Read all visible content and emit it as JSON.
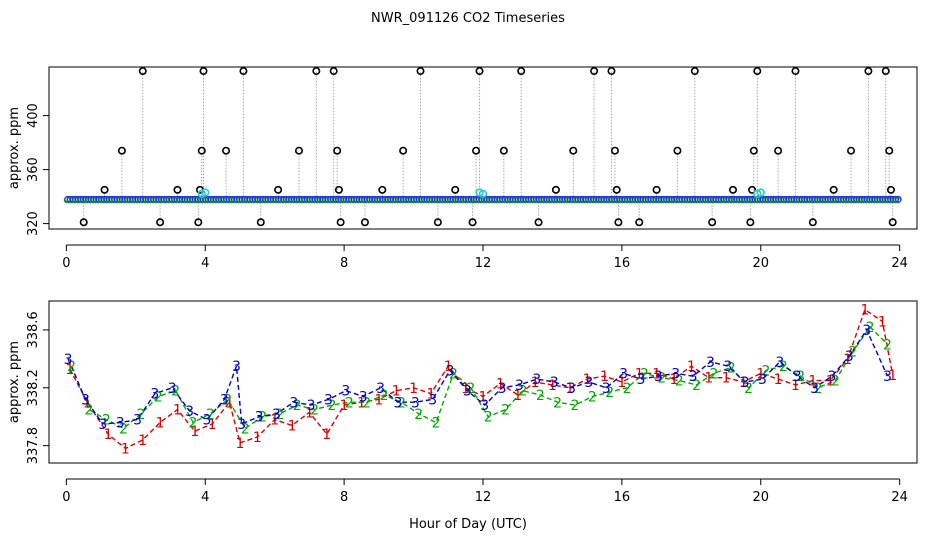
{
  "title": "NWR_091126  CO2 Timeseries",
  "xlabel": "Hour of Day (UTC)",
  "chart_data": [
    {
      "type": "scatter",
      "panel": "top",
      "ylabel": "approx. ppm",
      "xlim": [
        -0.5,
        24.5
      ],
      "ylim": [
        316,
        436
      ],
      "x_ticks": [
        "0",
        "4",
        "8",
        "12",
        "16",
        "20",
        "24"
      ],
      "y_ticks": [
        "320",
        "360",
        "400"
      ],
      "baseline": 338,
      "cyan_points": [
        [
          3.9,
          342
        ],
        [
          4.0,
          343
        ],
        [
          11.9,
          343
        ],
        [
          12.0,
          342
        ],
        [
          19.9,
          342
        ],
        [
          20.0,
          343
        ]
      ],
      "spikes": [
        [
          0.5,
          321
        ],
        [
          1.1,
          345
        ],
        [
          1.6,
          374
        ],
        [
          2.2,
          433
        ],
        [
          2.7,
          321
        ],
        [
          3.2,
          345
        ],
        [
          3.8,
          321
        ],
        [
          3.85,
          345
        ],
        [
          3.9,
          374
        ],
        [
          3.95,
          433
        ],
        [
          4.6,
          374
        ],
        [
          5.1,
          433
        ],
        [
          5.6,
          321
        ],
        [
          6.1,
          345
        ],
        [
          6.7,
          374
        ],
        [
          7.2,
          433
        ],
        [
          7.7,
          433
        ],
        [
          7.8,
          374
        ],
        [
          7.85,
          345
        ],
        [
          7.9,
          321
        ],
        [
          8.6,
          321
        ],
        [
          9.1,
          345
        ],
        [
          9.7,
          374
        ],
        [
          10.2,
          433
        ],
        [
          10.7,
          321
        ],
        [
          11.2,
          345
        ],
        [
          11.7,
          321
        ],
        [
          11.8,
          374
        ],
        [
          11.9,
          433
        ],
        [
          12.6,
          374
        ],
        [
          13.1,
          433
        ],
        [
          13.6,
          321
        ],
        [
          14.1,
          345
        ],
        [
          14.6,
          374
        ],
        [
          15.2,
          433
        ],
        [
          15.7,
          433
        ],
        [
          15.8,
          374
        ],
        [
          15.85,
          345
        ],
        [
          15.9,
          321
        ],
        [
          16.5,
          321
        ],
        [
          17.0,
          345
        ],
        [
          17.6,
          374
        ],
        [
          18.1,
          433
        ],
        [
          18.6,
          321
        ],
        [
          19.2,
          345
        ],
        [
          19.7,
          321
        ],
        [
          19.75,
          345
        ],
        [
          19.8,
          374
        ],
        [
          19.9,
          433
        ],
        [
          20.5,
          374
        ],
        [
          21.0,
          433
        ],
        [
          21.5,
          321
        ],
        [
          22.1,
          345
        ],
        [
          22.6,
          374
        ],
        [
          23.1,
          433
        ],
        [
          23.6,
          433
        ],
        [
          23.7,
          374
        ],
        [
          23.75,
          345
        ],
        [
          23.8,
          321
        ]
      ]
    },
    {
      "type": "line",
      "panel": "bottom",
      "ylabel": "approx. ppm",
      "xlim": [
        -0.5,
        24.5
      ],
      "ylim": [
        337.68,
        338.8
      ],
      "x_ticks": [
        "0",
        "4",
        "8",
        "12",
        "16",
        "20",
        "24"
      ],
      "y_ticks": [
        "337.8",
        "338.2",
        "338.6"
      ],
      "series": [
        {
          "name": "1",
          "color": "#dd0000",
          "x": [
            0.1,
            0.6,
            1.2,
            1.7,
            2.2,
            2.7,
            3.2,
            3.7,
            4.2,
            4.7,
            5.0,
            5.5,
            6.0,
            6.5,
            7.0,
            7.5,
            8.0,
            8.5,
            9.0,
            9.5,
            10.0,
            10.5,
            11.0,
            11.5,
            12.0,
            12.5,
            13.0,
            13.5,
            14.0,
            14.5,
            15.0,
            15.5,
            16.0,
            16.5,
            17.0,
            17.5,
            18.0,
            18.5,
            19.0,
            19.5,
            20.0,
            20.5,
            21.0,
            21.5,
            22.0,
            22.5,
            23.0,
            23.5,
            23.8
          ],
          "y": [
            338.33,
            338.1,
            337.88,
            337.78,
            337.84,
            337.96,
            338.05,
            337.9,
            337.95,
            338.1,
            337.82,
            337.86,
            337.98,
            337.94,
            338.03,
            337.88,
            338.08,
            338.1,
            338.12,
            338.18,
            338.2,
            338.16,
            338.35,
            338.2,
            338.14,
            338.23,
            338.15,
            338.24,
            338.22,
            338.2,
            338.26,
            338.28,
            338.24,
            338.3,
            338.3,
            338.26,
            338.35,
            338.27,
            338.27,
            338.24,
            338.3,
            338.26,
            338.22,
            338.25,
            338.25,
            338.4,
            338.74,
            338.66,
            338.29
          ]
        },
        {
          "name": "2",
          "color": "#00aa00",
          "x": [
            0.15,
            0.65,
            1.15,
            1.65,
            2.15,
            2.65,
            3.15,
            3.65,
            4.15,
            4.65,
            5.15,
            5.65,
            6.15,
            6.65,
            7.15,
            7.65,
            8.15,
            8.65,
            9.15,
            9.65,
            10.15,
            10.65,
            11.15,
            11.65,
            12.15,
            12.65,
            13.15,
            13.65,
            14.15,
            14.65,
            15.15,
            15.65,
            16.15,
            16.65,
            17.15,
            17.65,
            18.15,
            18.65,
            19.15,
            19.65,
            20.15,
            20.65,
            21.15,
            21.65,
            22.15,
            22.65,
            23.15,
            23.65
          ],
          "y": [
            338.35,
            338.05,
            337.98,
            337.92,
            338.02,
            338.14,
            338.18,
            337.96,
            338.02,
            338.12,
            337.92,
            338.0,
            338.02,
            338.08,
            338.05,
            338.08,
            338.1,
            338.1,
            338.15,
            338.1,
            338.02,
            337.96,
            338.3,
            338.2,
            338.0,
            338.05,
            338.18,
            338.15,
            338.1,
            338.08,
            338.14,
            338.17,
            338.2,
            338.3,
            338.27,
            338.25,
            338.22,
            338.3,
            338.34,
            338.2,
            338.32,
            338.35,
            338.28,
            338.2,
            338.25,
            338.45,
            338.62,
            338.5
          ]
        },
        {
          "name": "3",
          "color": "#0000cc",
          "x": [
            0.05,
            0.55,
            1.05,
            1.55,
            2.05,
            2.55,
            3.05,
            3.55,
            4.05,
            4.55,
            4.9,
            5.05,
            5.55,
            6.05,
            6.55,
            7.05,
            7.55,
            8.05,
            8.55,
            9.05,
            9.55,
            10.05,
            10.55,
            11.05,
            11.55,
            12.05,
            12.55,
            13.05,
            13.55,
            14.05,
            14.55,
            15.05,
            15.55,
            16.05,
            16.55,
            17.05,
            17.55,
            18.05,
            18.55,
            19.05,
            19.55,
            20.05,
            20.55,
            21.05,
            21.55,
            22.05,
            22.55,
            23.05,
            23.65
          ],
          "y": [
            338.4,
            338.12,
            337.95,
            337.96,
            337.98,
            338.16,
            338.2,
            338.04,
            337.98,
            338.12,
            338.35,
            337.95,
            338.0,
            338.02,
            338.1,
            338.08,
            338.12,
            338.18,
            338.14,
            338.2,
            338.1,
            338.1,
            338.12,
            338.32,
            338.18,
            338.08,
            338.2,
            338.22,
            338.26,
            338.24,
            338.2,
            338.24,
            338.2,
            338.3,
            338.26,
            338.28,
            338.3,
            338.28,
            338.38,
            338.35,
            338.24,
            338.26,
            338.38,
            338.28,
            338.2,
            338.28,
            338.42,
            338.6,
            338.28
          ]
        }
      ]
    }
  ]
}
